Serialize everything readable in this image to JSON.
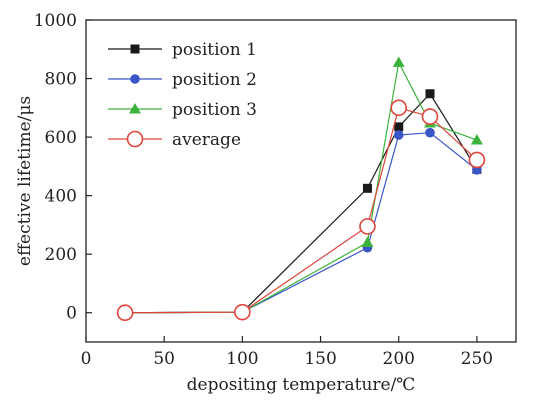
{
  "chart_data": {
    "type": "line",
    "xlabel": "depositing temperature/℃",
    "ylabel": "effective lifetime/μs",
    "xlim": [
      0,
      275
    ],
    "ylim": [
      -100,
      1000
    ],
    "xticks": [
      0,
      50,
      100,
      150,
      200,
      250
    ],
    "yticks": [
      0,
      200,
      400,
      600,
      800,
      1000
    ],
    "legend_position": "top-left",
    "grid": false,
    "series": [
      {
        "name": "position 1",
        "color": "#1a1a1a",
        "marker": "square-filled",
        "x": [
          25,
          100,
          180,
          200,
          220,
          250
        ],
        "y": [
          0,
          2,
          425,
          635,
          748,
          490
        ]
      },
      {
        "name": "position 2",
        "color": "#3a55c8",
        "marker": "circle-filled",
        "x": [
          25,
          100,
          180,
          200,
          220,
          250
        ],
        "y": [
          0,
          2,
          222,
          607,
          615,
          488
        ]
      },
      {
        "name": "position 3",
        "color": "#3cb43c",
        "marker": "triangle-filled",
        "x": [
          25,
          100,
          180,
          200,
          220,
          250
        ],
        "y": [
          0,
          2,
          240,
          855,
          648,
          590
        ]
      },
      {
        "name": "average",
        "color": "#e0453a",
        "marker": "circle-open",
        "x": [
          25,
          100,
          180,
          200,
          220,
          250
        ],
        "y": [
          0,
          2,
          295,
          700,
          670,
          522
        ]
      }
    ]
  }
}
